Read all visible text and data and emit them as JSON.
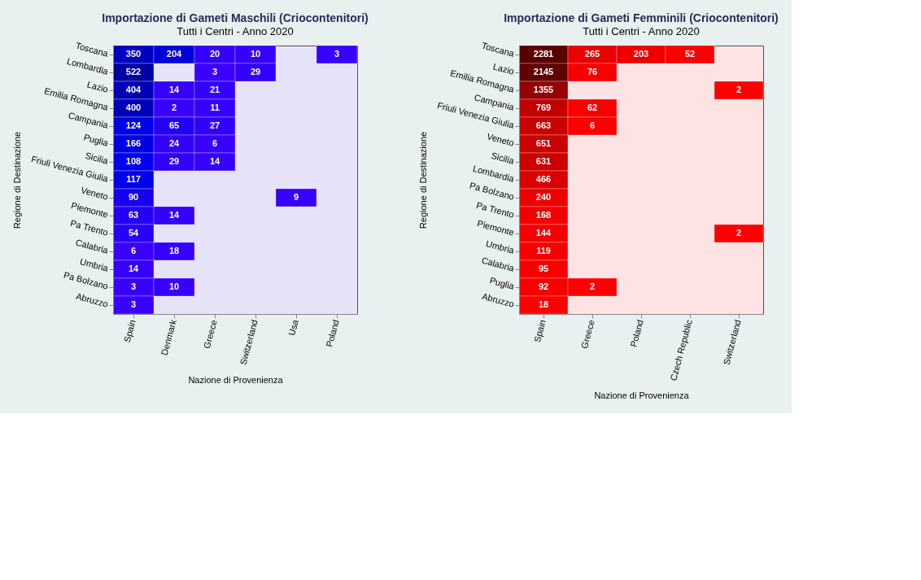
{
  "chart_data": [
    {
      "type": "heatmap",
      "title": "Importazione di Gameti Maschili (Criocontenitori)",
      "subtitle": "Tutti i Centri - Anno 2020",
      "xlabel": "Nazione di Provenienza",
      "ylabel": "Regione di Destinazione",
      "categories": [
        "Spain",
        "Denmark",
        "Greece",
        "Switzerland",
        "Usa",
        "Poland"
      ],
      "y_categories": [
        "Toscana",
        "Lombardia",
        "Lazio",
        "Emilia Romagna",
        "Campania",
        "Puglia",
        "Sicilia",
        "Friuli Venezia Giulia",
        "Veneto",
        "Piemonte",
        "Pa Trento",
        "Calabria",
        "Umbria",
        "Pa Bolzano",
        "Abruzzo"
      ],
      "cells": [
        [
          350,
          204,
          20,
          10,
          null,
          3
        ],
        [
          522,
          null,
          3,
          29,
          null,
          null
        ],
        [
          404,
          14,
          21,
          null,
          null,
          null
        ],
        [
          400,
          2,
          11,
          null,
          null,
          null
        ],
        [
          124,
          65,
          27,
          null,
          null,
          null
        ],
        [
          166,
          24,
          6,
          null,
          null,
          null
        ],
        [
          108,
          29,
          14,
          null,
          null,
          null
        ],
        [
          117,
          null,
          null,
          null,
          null,
          null
        ],
        [
          90,
          null,
          null,
          null,
          9,
          null
        ],
        [
          63,
          14,
          null,
          null,
          null,
          null
        ],
        [
          54,
          null,
          null,
          null,
          null,
          null
        ],
        [
          6,
          18,
          null,
          null,
          null,
          null
        ],
        [
          14,
          null,
          null,
          null,
          null,
          null
        ],
        [
          3,
          10,
          null,
          null,
          null,
          null
        ],
        [
          3,
          null,
          null,
          null,
          null,
          null
        ]
      ],
      "data_labels": true,
      "grid": false,
      "legend": false
    },
    {
      "type": "heatmap",
      "title": "Importazione di Gameti Femminili (Criocontenitori)",
      "subtitle": "Tutti i Centri - Anno 2020",
      "xlabel": "Nazione di Provenienza",
      "ylabel": "Regione di Destinazione",
      "categories": [
        "Spain",
        "Greece",
        "Poland",
        "Czech Republic",
        "Switzerland"
      ],
      "y_categories": [
        "Toscana",
        "Lazio",
        "Emilia Romagna",
        "Campania",
        "Friuli Venezia Giulia",
        "Veneto",
        "Sicilia",
        "Lombardia",
        "Pa Bolzano",
        "Pa Trento",
        "Piemonte",
        "Umbria",
        "Calabria",
        "Puglia",
        "Abruzzo"
      ],
      "cells": [
        [
          2281,
          265,
          203,
          52,
          null
        ],
        [
          2145,
          76,
          null,
          null,
          null
        ],
        [
          1355,
          null,
          null,
          null,
          2
        ],
        [
          769,
          62,
          null,
          null,
          null
        ],
        [
          663,
          6,
          null,
          null,
          null
        ],
        [
          651,
          null,
          null,
          null,
          null
        ],
        [
          631,
          null,
          null,
          null,
          null
        ],
        [
          466,
          null,
          null,
          null,
          null
        ],
        [
          240,
          null,
          null,
          null,
          null
        ],
        [
          168,
          null,
          null,
          null,
          null
        ],
        [
          144,
          null,
          null,
          null,
          2
        ],
        [
          119,
          null,
          null,
          null,
          null
        ],
        [
          95,
          null,
          null,
          null,
          null
        ],
        [
          92,
          2,
          null,
          null,
          null
        ],
        [
          18,
          null,
          null,
          null,
          null
        ]
      ],
      "data_labels": true,
      "grid": false,
      "legend": false
    }
  ]
}
